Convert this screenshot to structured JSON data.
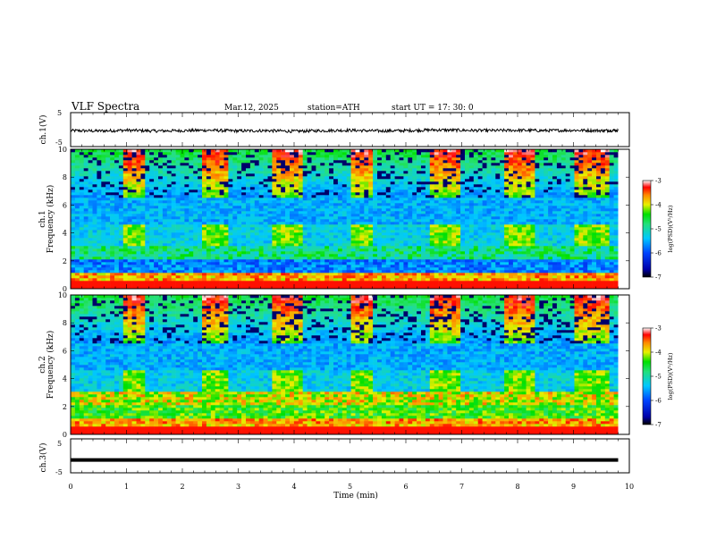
{
  "header": {
    "title": "VLF  Spectra",
    "date": "Mar.12, 2025",
    "station": "station=ATH",
    "start": "start  UT  =   17: 30: 0"
  },
  "chart_data": [
    {
      "type": "line",
      "panel": "ch1",
      "ylabel": "ch.1(V)",
      "ylim": [
        -5,
        5
      ],
      "yticks": [
        "5",
        "-5"
      ],
      "xlim": [
        0,
        10
      ],
      "series": [
        {
          "x": [
            0,
            0.5,
            1,
            1.5,
            2,
            2.5,
            3,
            3.5,
            4,
            4.5,
            5,
            5.5,
            6,
            6.5,
            7,
            7.5,
            8,
            8.5,
            9,
            9.5,
            9.8
          ],
          "values": [
            -0.3,
            -0.4,
            -0.2,
            -0.4,
            -0.3,
            -0.2,
            -0.4,
            -0.3,
            -0.5,
            -0.3,
            -0.2,
            -0.4,
            -0.3,
            -0.1,
            -0.2,
            -0.3,
            -0.2,
            -0.3,
            -0.2,
            -0.3,
            -0.2
          ]
        }
      ]
    },
    {
      "type": "heatmap",
      "panel": "ch1",
      "ylabel_top": "ch.1",
      "ylabel": "Frequency  (kHz)",
      "ylim": [
        0,
        10
      ],
      "yticks": [
        "0",
        "2",
        "4",
        "6",
        "8",
        "10"
      ],
      "xlim": [
        0,
        10
      ],
      "colorbar": {
        "min": -7,
        "max": -3,
        "ticks": [
          "-3",
          "-4",
          "-5",
          "-6",
          "-7"
        ],
        "label": "log(PSD)(V²/Hz)"
      }
    },
    {
      "type": "heatmap",
      "panel": "ch2",
      "ylabel_top": "ch.2",
      "ylabel": "Frequency  (kHz)",
      "ylim": [
        0,
        10
      ],
      "yticks": [
        "0",
        "2",
        "4",
        "6",
        "8",
        "10"
      ],
      "xlim": [
        0,
        10
      ],
      "colorbar": {
        "min": -7,
        "max": -3,
        "ticks": [
          "-3",
          "-4",
          "-5",
          "-6",
          "-7"
        ],
        "label": "log(PSD)(V²/Hz)"
      }
    },
    {
      "type": "line",
      "panel": "ch3",
      "ylabel": "ch.3(V)",
      "ylim": [
        -5,
        5
      ],
      "yticks": [
        "5",
        "-5"
      ],
      "xlim": [
        0,
        10
      ],
      "xlabel": "Time  (min)",
      "xticks": [
        "0",
        "1",
        "2",
        "3",
        "4",
        "5",
        "6",
        "7",
        "8",
        "9",
        "10"
      ],
      "series": [
        {
          "x": [
            0,
            9.8
          ],
          "values": [
            -1.2,
            -1.2
          ]
        }
      ]
    }
  ]
}
